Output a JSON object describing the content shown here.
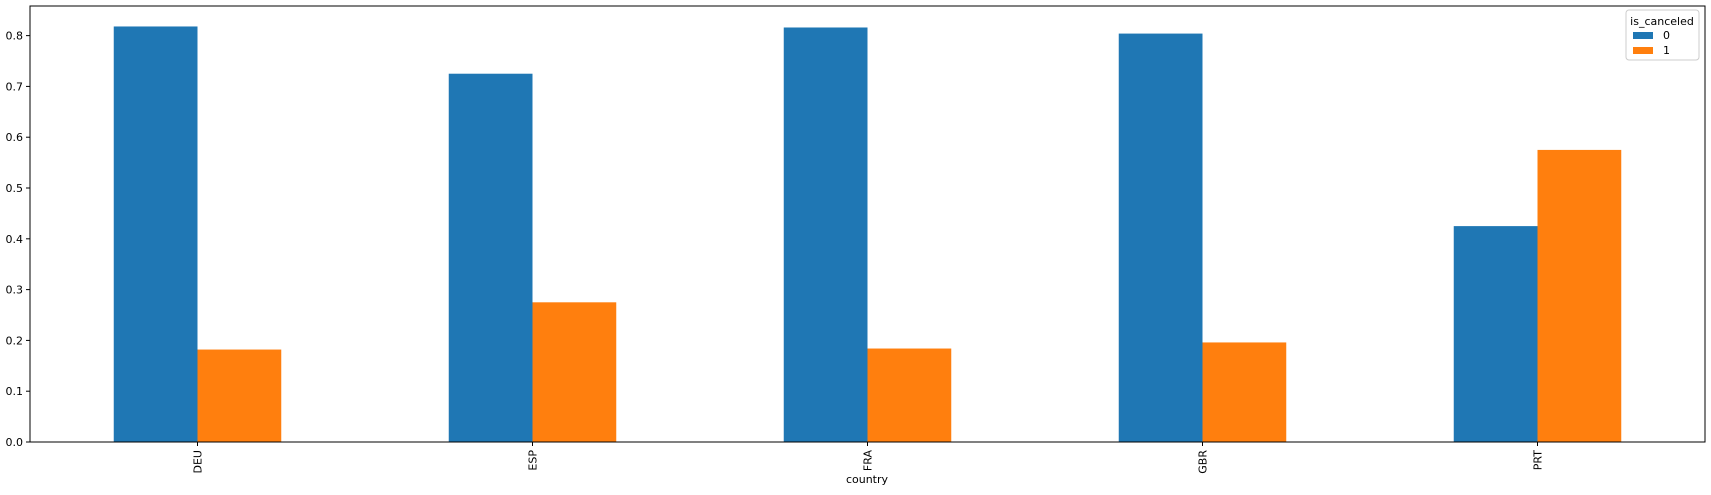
{
  "chart_data": {
    "type": "bar",
    "title": "",
    "xlabel": "country",
    "ylabel": "",
    "categories": [
      "DEU",
      "ESP",
      "FRA",
      "GBR",
      "PRT"
    ],
    "series": [
      {
        "name": "0",
        "color": "#1f77b4",
        "values": [
          0.818,
          0.725,
          0.816,
          0.804,
          0.425
        ]
      },
      {
        "name": "1",
        "color": "#ff7f0e",
        "values": [
          0.182,
          0.275,
          0.184,
          0.196,
          0.575
        ]
      }
    ],
    "ylim": [
      0,
      0.8583
    ],
    "yticks": [
      "0.0",
      "0.1",
      "0.2",
      "0.3",
      "0.4",
      "0.5",
      "0.6",
      "0.7",
      "0.8"
    ],
    "grid": false,
    "legend": {
      "title": "is_canceled",
      "placement": "top-right"
    }
  }
}
